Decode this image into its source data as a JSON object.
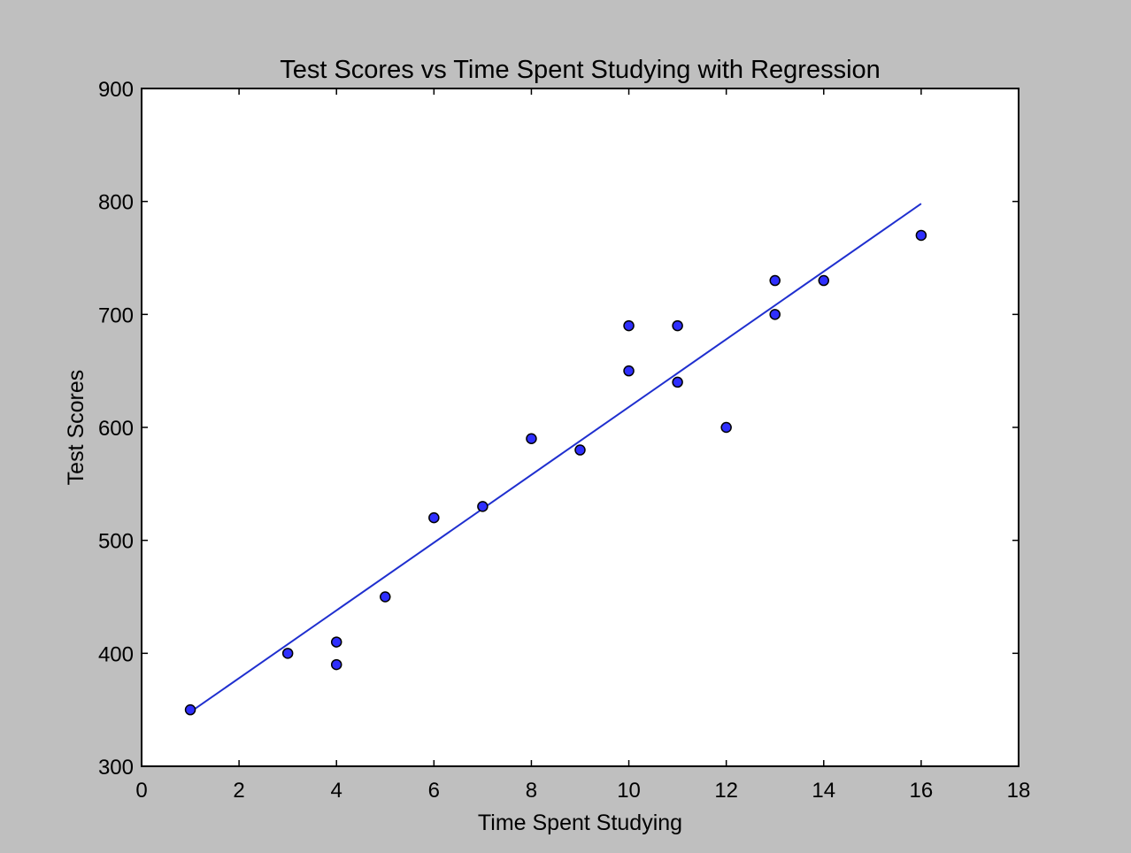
{
  "chart_data": {
    "type": "scatter",
    "title": "Test Scores vs Time Spent Studying with Regression",
    "xlabel": "Time Spent Studying",
    "ylabel": "Test Scores",
    "xlim": [
      0,
      18
    ],
    "ylim": [
      300,
      900
    ],
    "xticks": [
      0,
      2,
      4,
      6,
      8,
      10,
      12,
      14,
      16,
      18
    ],
    "yticks": [
      300,
      400,
      500,
      600,
      700,
      800,
      900
    ],
    "grid": false,
    "points": [
      {
        "x": 1,
        "y": 350
      },
      {
        "x": 3,
        "y": 400
      },
      {
        "x": 4,
        "y": 410
      },
      {
        "x": 4,
        "y": 390
      },
      {
        "x": 5,
        "y": 450
      },
      {
        "x": 6,
        "y": 520
      },
      {
        "x": 7,
        "y": 530
      },
      {
        "x": 8,
        "y": 590
      },
      {
        "x": 9,
        "y": 580
      },
      {
        "x": 10,
        "y": 690
      },
      {
        "x": 10,
        "y": 650
      },
      {
        "x": 11,
        "y": 690
      },
      {
        "x": 11,
        "y": 640
      },
      {
        "x": 12,
        "y": 600
      },
      {
        "x": 13,
        "y": 730
      },
      {
        "x": 13,
        "y": 700
      },
      {
        "x": 14,
        "y": 730
      },
      {
        "x": 16,
        "y": 770
      }
    ],
    "regression_line": {
      "x": [
        1,
        16
      ],
      "y": [
        348,
        798
      ]
    },
    "colors": {
      "marker": "#2f2fff",
      "marker_edge": "#000000",
      "line": "#1f2fcf",
      "background": "#bfbfbf",
      "plot_area": "#ffffff"
    }
  }
}
